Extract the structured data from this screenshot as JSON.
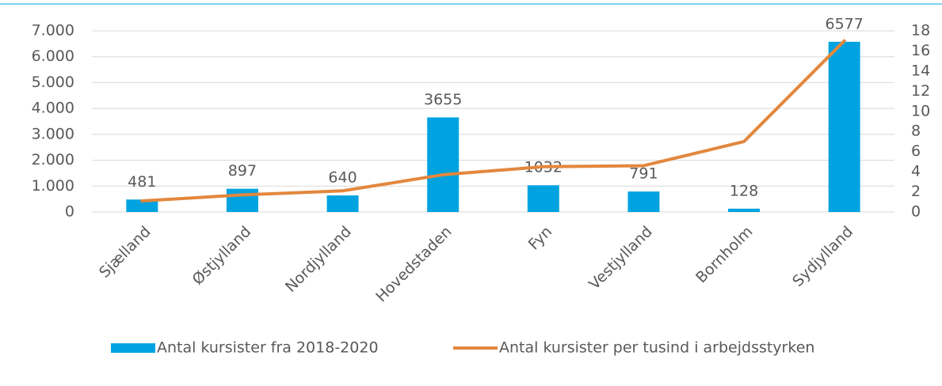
{
  "chart_data": {
    "type": "bar_line",
    "categories": [
      "Sjælland",
      "Østjylland",
      "Nordjylland",
      "Hovedstaden",
      "Fyn",
      "Vestjylland",
      "Bornholm",
      "Sydjylland"
    ],
    "series": [
      {
        "name": "Antal kursister fra 2018-2020",
        "type": "bar",
        "color": "#00a3e0",
        "values": [
          481,
          897,
          640,
          3655,
          1032,
          791,
          128,
          6577
        ]
      },
      {
        "name": "Antal kursister per tusind i arbejdsstyrken",
        "type": "line",
        "axis": "y2",
        "color": "#e3873d",
        "values": [
          1.1,
          1.7,
          2.1,
          3.7,
          4.5,
          4.6,
          7.0,
          17.0
        ]
      }
    ],
    "ylim": [
      0,
      7000
    ],
    "yticks": [
      0,
      {
        "value": 1000,
        "label": "1.000"
      },
      {
        "value": 2000,
        "label": "2.000"
      },
      {
        "value": 3000,
        "label": "3.000"
      },
      {
        "value": 4000,
        "label": "4.000"
      },
      {
        "value": 5000,
        "label": "5.000"
      },
      {
        "value": 6000,
        "label": "6.000"
      },
      {
        "value": 7000,
        "label": "7.000"
      }
    ],
    "y2lim": [
      0,
      18
    ],
    "y2ticks": [
      0,
      2,
      4,
      6,
      8,
      10,
      12,
      14,
      16,
      18
    ],
    "grid": true,
    "legend": "bottom"
  }
}
